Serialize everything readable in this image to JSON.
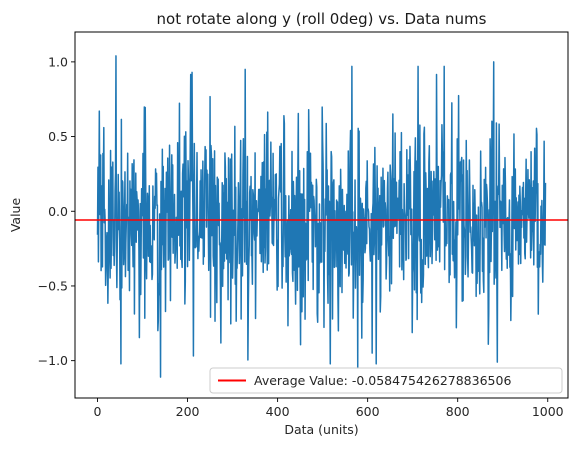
{
  "chart_data": {
    "type": "line",
    "title": "not rotate along y (roll 0deg) vs. Data nums",
    "xlabel": "Data (units)",
    "ylabel": "Value",
    "xlim": [
      -50,
      1045
    ],
    "ylim": [
      -1.25,
      1.2
    ],
    "xticks": [
      0,
      200,
      400,
      600,
      800,
      1000
    ],
    "xtick_labels": [
      "0",
      "200",
      "400",
      "600",
      "800",
      "1000"
    ],
    "yticks": [
      -1.0,
      -0.5,
      0.0,
      0.5,
      1.0
    ],
    "ytick_labels": [
      "−1.0",
      "−0.5",
      "0.0",
      "0.5",
      "1.0"
    ],
    "grid": false,
    "legend_position": "lower-right",
    "series": [
      {
        "name": "",
        "color": "#1f77b4",
        "kind": "noise-signal",
        "count": 996,
        "x_start": 0,
        "x_end": 995,
        "mean": -0.0585,
        "std": 0.32,
        "min": -1.11,
        "max": 1.04,
        "seed": 7,
        "extremes": [
          {
            "x": 41,
            "y": 1.04
          },
          {
            "x": 140,
            "y": -1.11
          },
          {
            "x": 210,
            "y": 0.93
          },
          {
            "x": 328,
            "y": 0.95
          },
          {
            "x": 565,
            "y": 0.97
          },
          {
            "x": 712,
            "y": 0.97
          },
          {
            "x": 770,
            "y": 0.97
          },
          {
            "x": 880,
            "y": 1.0
          },
          {
            "x": 888,
            "y": -1.01
          },
          {
            "x": 578,
            "y": -1.05
          },
          {
            "x": 610,
            "y": -0.95
          }
        ]
      }
    ],
    "hline": {
      "y": -0.058475426278836506,
      "color": "#ff0000",
      "label": "Average Value: -0.058475426278836506"
    }
  }
}
